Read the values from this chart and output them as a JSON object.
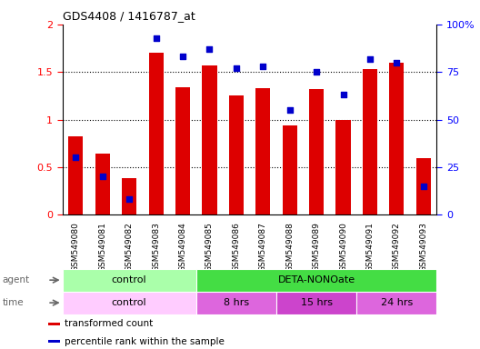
{
  "title": "GDS4408 / 1416787_at",
  "samples": [
    "GSM549080",
    "GSM549081",
    "GSM549082",
    "GSM549083",
    "GSM549084",
    "GSM549085",
    "GSM549086",
    "GSM549087",
    "GSM549088",
    "GSM549089",
    "GSM549090",
    "GSM549091",
    "GSM549092",
    "GSM549093"
  ],
  "bar_values": [
    0.82,
    0.64,
    0.38,
    1.7,
    1.34,
    1.57,
    1.25,
    1.33,
    0.94,
    1.32,
    1.0,
    1.53,
    1.6,
    0.59
  ],
  "dot_values_pct": [
    30,
    20,
    8,
    93,
    83,
    87,
    77,
    78,
    55,
    75,
    63,
    82,
    80,
    15
  ],
  "bar_color": "#dd0000",
  "dot_color": "#0000cc",
  "ylim_left": [
    0,
    2
  ],
  "ylim_right": [
    0,
    100
  ],
  "yticks_left": [
    0,
    0.5,
    1.0,
    1.5,
    2.0
  ],
  "ytick_labels_left": [
    "0",
    "0.5",
    "1",
    "1.5",
    "2"
  ],
  "ytick_labels_right": [
    "0",
    "25",
    "50",
    "75",
    "100%"
  ],
  "agent_groups": [
    {
      "label": "control",
      "start": 0,
      "end": 5,
      "color": "#aaffaa"
    },
    {
      "label": "DETA-NONOate",
      "start": 5,
      "end": 14,
      "color": "#44dd44"
    }
  ],
  "time_groups": [
    {
      "label": "control",
      "start": 0,
      "end": 5,
      "color": "#ffccff"
    },
    {
      "label": "8 hrs",
      "start": 5,
      "end": 8,
      "color": "#dd66dd"
    },
    {
      "label": "15 hrs",
      "start": 8,
      "end": 11,
      "color": "#cc44cc"
    },
    {
      "label": "24 hrs",
      "start": 11,
      "end": 14,
      "color": "#dd66dd"
    }
  ],
  "legend_items": [
    {
      "label": "transformed count",
      "color": "#dd0000"
    },
    {
      "label": "percentile rank within the sample",
      "color": "#0000cc"
    }
  ],
  "bar_width": 0.55,
  "agent_label": "agent",
  "time_label": "time",
  "xtick_bg": "#cccccc"
}
